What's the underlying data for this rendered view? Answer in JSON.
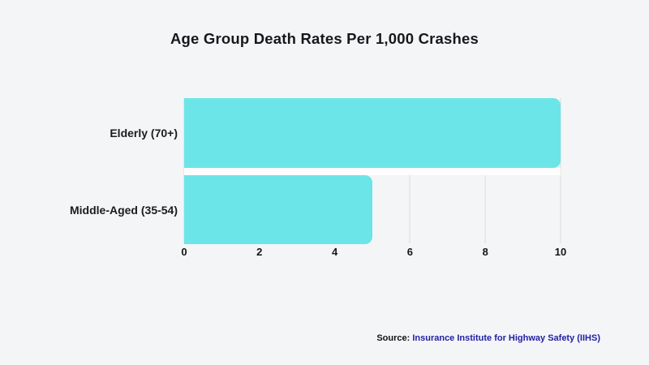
{
  "page": {
    "title": "Age Group Death Rates Per 1,000 Crashes"
  },
  "chart_data": {
    "type": "bar",
    "orientation": "horizontal",
    "title": "Age Group Death Rates Per 1,000 Crashes",
    "categories": [
      "Elderly (70+)",
      "Middle-Aged (35-54)"
    ],
    "values": [
      10,
      5
    ],
    "xlabel": "",
    "ylabel": "",
    "xlim": [
      0,
      10
    ],
    "xticks": [
      0,
      2,
      4,
      6,
      8,
      10
    ],
    "xtick_labels": [
      "0",
      "2",
      "4",
      "6",
      "8",
      "10"
    ],
    "grid": "vertical",
    "legend_position": "none",
    "bar_color": "#6ce5e8"
  },
  "source": {
    "prefix": "Source:",
    "link_text": " Insurance Institute for Highway Safety (IIHS)"
  },
  "colors": {
    "background": "#f4f5f7",
    "bar": "#6ce5e8",
    "gridline": "#d9dadc",
    "title_text": "#17181c",
    "source_link": "#1f1fa3"
  }
}
